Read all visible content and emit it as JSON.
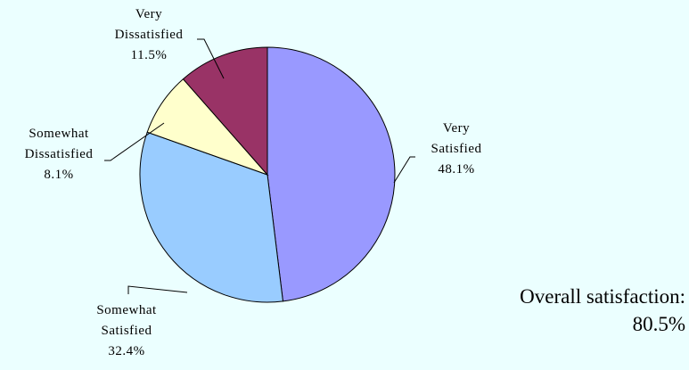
{
  "chart_data": {
    "type": "pie",
    "title": "",
    "slices": [
      {
        "label_lines": [
          "Very",
          "Satisfied"
        ],
        "value": 48.1,
        "value_label": "48.1%",
        "color": "#9999ff"
      },
      {
        "label_lines": [
          "Somewhat",
          "Satisfied"
        ],
        "value": 32.4,
        "value_label": "32.4%",
        "color": "#99ccff"
      },
      {
        "label_lines": [
          "Somewhat",
          "Dissatisfied"
        ],
        "value": 8.1,
        "value_label": "8.1%",
        "color": "#ffffcc"
      },
      {
        "label_lines": [
          "Very",
          "Dissatisfied"
        ],
        "value": 11.5,
        "value_label": "11.5%",
        "color": "#993366"
      }
    ],
    "start_angle": "12 o'clock",
    "direction": "clockwise",
    "legend": "none",
    "slice_colors": {
      "very_satisfied": "#9999ff",
      "somewhat_satisfied": "#99ccff",
      "somewhat_dissatisfied": "#ffffcc",
      "very_dissatisfied": "#993366"
    }
  },
  "summary": {
    "label": "Overall satisfaction:",
    "value": "80.5%"
  },
  "background_color": "#ebffff"
}
